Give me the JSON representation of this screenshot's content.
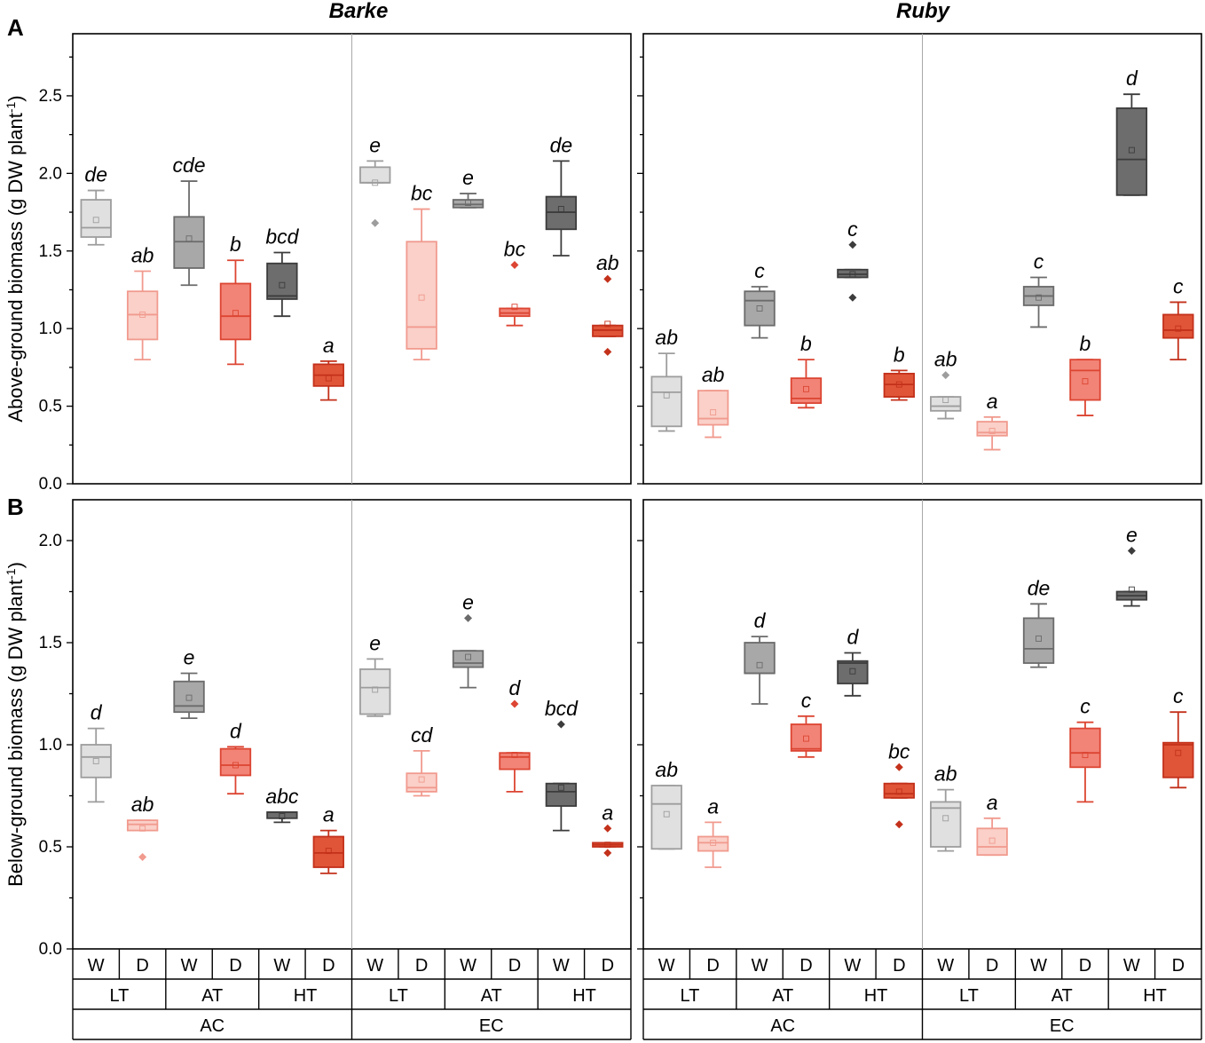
{
  "chart_data": {
    "type": "box",
    "cultivars": [
      "Barke",
      "Ruby"
    ],
    "panel_labels": [
      "A",
      "B"
    ],
    "x_levels": {
      "water": [
        "W",
        "D",
        "W",
        "D",
        "W",
        "D",
        "W",
        "D",
        "W",
        "D",
        "W",
        "D"
      ],
      "temperature": [
        "LT",
        "AT",
        "HT",
        "LT",
        "AT",
        "HT"
      ],
      "co2": [
        "AC",
        "EC"
      ]
    },
    "series_colors": [
      "#e0e0e0",
      "#fad0c8",
      "#a8a8a8",
      "#f28477",
      "#6d6d6d",
      "#e05538"
    ],
    "series_strokes": [
      "#9d9d9d",
      "#f19a8e",
      "#6b6b6b",
      "#dc4532",
      "#3c3c3c",
      "#c3311b"
    ],
    "panels": [
      {
        "id": "A",
        "ylabel": "Above-ground biomass (g DW plant",
        "ylabel_sup": "-1",
        "ylabel_end": ")",
        "ylim": [
          0,
          2.9
        ],
        "yticks": [
          "0.0",
          "0.5",
          "1.0",
          "1.5",
          "2.0",
          "2.5"
        ],
        "yticks_values": [
          0,
          0.5,
          1.0,
          1.5,
          2.0,
          2.5
        ],
        "cultivars": {
          "Barke": {
            "boxes": [
              {
                "q1": 1.59,
                "median": 1.65,
                "q3": 1.83,
                "whislo": 1.54,
                "whishi": 1.89,
                "mean": 1.7,
                "outliers": [],
                "letter": "de"
              },
              {
                "q1": 0.93,
                "median": 1.09,
                "q3": 1.24,
                "whislo": 0.8,
                "whishi": 1.37,
                "mean": 1.09,
                "outliers": [],
                "letter": "ab"
              },
              {
                "q1": 1.39,
                "median": 1.56,
                "q3": 1.72,
                "whislo": 1.28,
                "whishi": 1.95,
                "mean": 1.58,
                "outliers": [],
                "letter": "cde"
              },
              {
                "q1": 0.93,
                "median": 1.08,
                "q3": 1.29,
                "whislo": 0.77,
                "whishi": 1.44,
                "mean": 1.1,
                "outliers": [],
                "letter": "b"
              },
              {
                "q1": 1.19,
                "median": 1.21,
                "q3": 1.42,
                "whislo": 1.08,
                "whishi": 1.49,
                "mean": 1.28,
                "outliers": [],
                "letter": "bcd"
              },
              {
                "q1": 0.63,
                "median": 0.7,
                "q3": 0.77,
                "whislo": 0.54,
                "whishi": 0.79,
                "mean": 0.68,
                "outliers": [],
                "letter": "a"
              },
              {
                "q1": 1.94,
                "median": 1.94,
                "q3": 2.04,
                "whislo": 1.94,
                "whishi": 2.08,
                "mean": 1.94,
                "outliers": [
                  1.68
                ],
                "letter": "e"
              },
              {
                "q1": 0.87,
                "median": 1.01,
                "q3": 1.56,
                "whislo": 0.8,
                "whishi": 1.77,
                "mean": 1.2,
                "outliers": [],
                "letter": "bc"
              },
              {
                "q1": 1.78,
                "median": 1.8,
                "q3": 1.83,
                "whislo": 1.78,
                "whishi": 1.87,
                "mean": 1.81,
                "outliers": [],
                "letter": "e"
              },
              {
                "q1": 1.08,
                "median": 1.1,
                "q3": 1.13,
                "whislo": 1.02,
                "whishi": 1.13,
                "mean": 1.14,
                "outliers": [
                  1.41
                ],
                "letter": "bc"
              },
              {
                "q1": 1.64,
                "median": 1.75,
                "q3": 1.85,
                "whislo": 1.47,
                "whishi": 2.08,
                "mean": 1.77,
                "outliers": [],
                "letter": "de"
              },
              {
                "q1": 0.95,
                "median": 0.99,
                "q3": 1.02,
                "whislo": 0.95,
                "whishi": 1.02,
                "mean": 1.03,
                "outliers": [
                  1.32,
                  0.85
                ],
                "letter": "ab"
              }
            ]
          },
          "Ruby": {
            "boxes": [
              {
                "q1": 0.37,
                "median": 0.59,
                "q3": 0.69,
                "whislo": 0.34,
                "whishi": 0.84,
                "mean": 0.57,
                "outliers": [],
                "letter": "ab"
              },
              {
                "q1": 0.38,
                "median": 0.42,
                "q3": 0.6,
                "whislo": 0.3,
                "whishi": 0.6,
                "mean": 0.46,
                "outliers": [],
                "letter": "ab"
              },
              {
                "q1": 1.02,
                "median": 1.18,
                "q3": 1.24,
                "whislo": 0.94,
                "whishi": 1.27,
                "mean": 1.13,
                "outliers": [],
                "letter": "c"
              },
              {
                "q1": 0.52,
                "median": 0.55,
                "q3": 0.68,
                "whislo": 0.49,
                "whishi": 0.8,
                "mean": 0.61,
                "outliers": [],
                "letter": "b"
              },
              {
                "q1": 1.33,
                "median": 1.35,
                "q3": 1.38,
                "whislo": 1.33,
                "whishi": 1.38,
                "mean": 1.35,
                "outliers": [
                  1.54,
                  1.2
                ],
                "letter": "c"
              },
              {
                "q1": 0.56,
                "median": 0.64,
                "q3": 0.71,
                "whislo": 0.54,
                "whishi": 0.73,
                "mean": 0.64,
                "outliers": [],
                "letter": "b"
              },
              {
                "q1": 0.47,
                "median": 0.5,
                "q3": 0.56,
                "whislo": 0.42,
                "whishi": 0.56,
                "mean": 0.54,
                "outliers": [
                  0.7
                ],
                "letter": "ab"
              },
              {
                "q1": 0.31,
                "median": 0.33,
                "q3": 0.4,
                "whislo": 0.22,
                "whishi": 0.43,
                "mean": 0.34,
                "outliers": [],
                "letter": "a"
              },
              {
                "q1": 1.15,
                "median": 1.21,
                "q3": 1.27,
                "whislo": 1.01,
                "whishi": 1.33,
                "mean": 1.2,
                "outliers": [],
                "letter": "c"
              },
              {
                "q1": 0.54,
                "median": 0.73,
                "q3": 0.8,
                "whislo": 0.44,
                "whishi": 0.8,
                "mean": 0.66,
                "outliers": [],
                "letter": "b"
              },
              {
                "q1": 1.86,
                "median": 2.09,
                "q3": 2.42,
                "whislo": 1.86,
                "whishi": 2.51,
                "mean": 2.15,
                "outliers": [],
                "letter": "d"
              },
              {
                "q1": 0.94,
                "median": 0.99,
                "q3": 1.09,
                "whislo": 0.8,
                "whishi": 1.17,
                "mean": 1.0,
                "outliers": [],
                "letter": "c"
              }
            ]
          }
        }
      },
      {
        "id": "B",
        "ylabel": "Below-ground biomass (g DW plant",
        "ylabel_sup": "-1",
        "ylabel_end": ")",
        "ylim": [
          0,
          2.2
        ],
        "yticks": [
          "0.0",
          "0.5",
          "1.0",
          "1.5",
          "2.0"
        ],
        "yticks_values": [
          0,
          0.5,
          1.0,
          1.5,
          2.0
        ],
        "cultivars": {
          "Barke": {
            "boxes": [
              {
                "q1": 0.84,
                "median": 0.94,
                "q3": 1.0,
                "whislo": 0.72,
                "whishi": 1.08,
                "mean": 0.92,
                "outliers": [],
                "letter": "d"
              },
              {
                "q1": 0.58,
                "median": 0.61,
                "q3": 0.63,
                "whislo": 0.58,
                "whishi": 0.63,
                "mean": 0.59,
                "outliers": [
                  0.45
                ],
                "letter": "ab"
              },
              {
                "q1": 1.16,
                "median": 1.19,
                "q3": 1.31,
                "whislo": 1.13,
                "whishi": 1.35,
                "mean": 1.23,
                "outliers": [],
                "letter": "e"
              },
              {
                "q1": 0.85,
                "median": 0.9,
                "q3": 0.98,
                "whislo": 0.76,
                "whishi": 0.99,
                "mean": 0.9,
                "outliers": [],
                "letter": "d"
              },
              {
                "q1": 0.64,
                "median": 0.67,
                "q3": 0.67,
                "whislo": 0.62,
                "whishi": 0.67,
                "mean": 0.65,
                "outliers": [],
                "letter": "abc"
              },
              {
                "q1": 0.4,
                "median": 0.47,
                "q3": 0.55,
                "whislo": 0.37,
                "whishi": 0.58,
                "mean": 0.48,
                "outliers": [],
                "letter": "a"
              },
              {
                "q1": 1.15,
                "median": 1.28,
                "q3": 1.37,
                "whislo": 1.14,
                "whishi": 1.42,
                "mean": 1.27,
                "outliers": [],
                "letter": "e"
              },
              {
                "q1": 0.77,
                "median": 0.79,
                "q3": 0.86,
                "whislo": 0.75,
                "whishi": 0.97,
                "mean": 0.83,
                "outliers": [],
                "letter": "cd"
              },
              {
                "q1": 1.38,
                "median": 1.4,
                "q3": 1.46,
                "whislo": 1.28,
                "whishi": 1.46,
                "mean": 1.43,
                "outliers": [
                  1.62
                ],
                "letter": "e"
              },
              {
                "q1": 0.88,
                "median": 0.94,
                "q3": 0.96,
                "whislo": 0.77,
                "whishi": 0.96,
                "mean": 0.95,
                "outliers": [
                  1.2
                ],
                "letter": "d"
              },
              {
                "q1": 0.7,
                "median": 0.77,
                "q3": 0.81,
                "whislo": 0.58,
                "whishi": 0.81,
                "mean": 0.79,
                "outliers": [
                  1.1
                ],
                "letter": "bcd"
              },
              {
                "q1": 0.5,
                "median": 0.51,
                "q3": 0.52,
                "whislo": 0.5,
                "whishi": 0.52,
                "mean": 0.51,
                "outliers": [
                  0.59,
                  0.47
                ],
                "letter": "a"
              }
            ]
          },
          "Ruby": {
            "boxes": [
              {
                "q1": 0.49,
                "median": 0.71,
                "q3": 0.8,
                "whislo": 0.49,
                "whishi": 0.8,
                "mean": 0.66,
                "outliers": [],
                "letter": "ab"
              },
              {
                "q1": 0.48,
                "median": 0.52,
                "q3": 0.55,
                "whislo": 0.4,
                "whishi": 0.62,
                "mean": 0.52,
                "outliers": [],
                "letter": "a"
              },
              {
                "q1": 1.35,
                "median": 1.35,
                "q3": 1.5,
                "whislo": 1.2,
                "whishi": 1.53,
                "mean": 1.39,
                "outliers": [],
                "letter": "d"
              },
              {
                "q1": 0.97,
                "median": 0.98,
                "q3": 1.1,
                "whislo": 0.94,
                "whishi": 1.14,
                "mean": 1.03,
                "outliers": [],
                "letter": "c"
              },
              {
                "q1": 1.3,
                "median": 1.4,
                "q3": 1.41,
                "whislo": 1.24,
                "whishi": 1.45,
                "mean": 1.36,
                "outliers": [],
                "letter": "d"
              },
              {
                "q1": 0.74,
                "median": 0.76,
                "q3": 0.81,
                "whislo": 0.74,
                "whishi": 0.81,
                "mean": 0.77,
                "outliers": [
                  0.89,
                  0.61
                ],
                "letter": "bc"
              },
              {
                "q1": 0.5,
                "median": 0.69,
                "q3": 0.72,
                "whislo": 0.48,
                "whishi": 0.78,
                "mean": 0.64,
                "outliers": [],
                "letter": "ab"
              },
              {
                "q1": 0.46,
                "median": 0.5,
                "q3": 0.59,
                "whislo": 0.46,
                "whishi": 0.64,
                "mean": 0.53,
                "outliers": [],
                "letter": "a"
              },
              {
                "q1": 1.4,
                "median": 1.47,
                "q3": 1.62,
                "whislo": 1.38,
                "whishi": 1.69,
                "mean": 1.52,
                "outliers": [],
                "letter": "de"
              },
              {
                "q1": 0.89,
                "median": 0.96,
                "q3": 1.08,
                "whislo": 0.72,
                "whishi": 1.11,
                "mean": 0.95,
                "outliers": [],
                "letter": "c"
              },
              {
                "q1": 1.71,
                "median": 1.73,
                "q3": 1.75,
                "whislo": 1.68,
                "whishi": 1.75,
                "mean": 1.76,
                "outliers": [
                  1.95
                ],
                "letter": "e"
              },
              {
                "q1": 0.84,
                "median": 1.0,
                "q3": 1.01,
                "whislo": 0.79,
                "whishi": 1.16,
                "mean": 0.96,
                "outliers": [],
                "letter": "c"
              }
            ]
          }
        }
      }
    ]
  }
}
